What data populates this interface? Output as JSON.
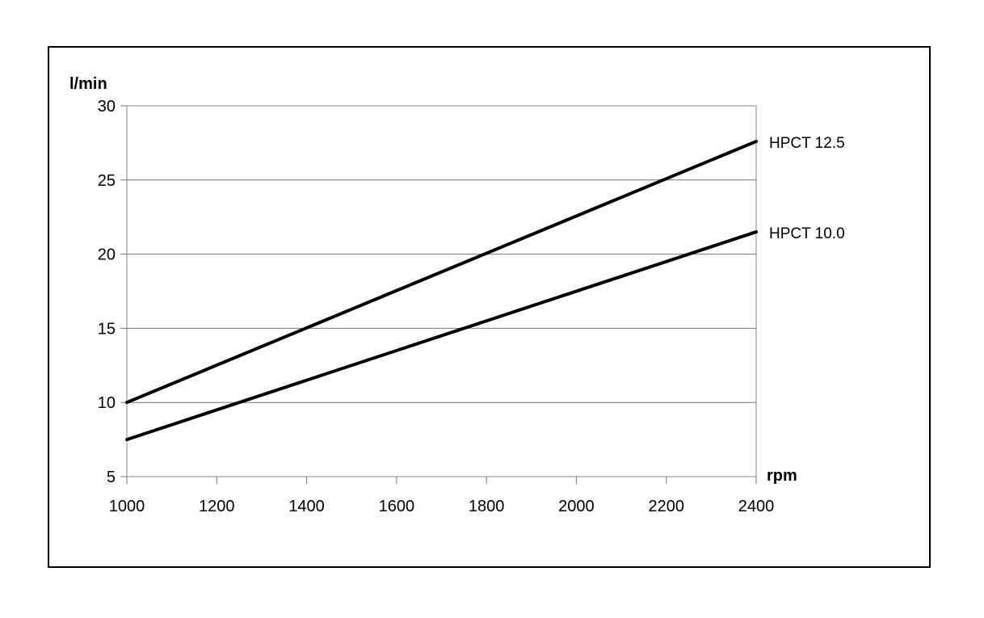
{
  "chart_data": {
    "type": "line",
    "title": "",
    "xlabel": "rpm",
    "ylabel": "l/min",
    "xlim": [
      1000,
      2400
    ],
    "ylim": [
      5,
      30
    ],
    "x_ticks": [
      1000,
      1200,
      1400,
      1600,
      1800,
      2000,
      2200,
      2400
    ],
    "y_ticks": [
      5,
      10,
      15,
      20,
      25,
      30
    ],
    "grid": true,
    "legend": "series labels at right end of lines",
    "series": [
      {
        "name": "HPCT 12.5",
        "color": "#000000",
        "x": [
          1000,
          2400
        ],
        "y": [
          10,
          27.6
        ]
      },
      {
        "name": "HPCT 10.0",
        "color": "#000000",
        "x": [
          1000,
          2400
        ],
        "y": [
          7.5,
          21.5
        ]
      }
    ]
  }
}
